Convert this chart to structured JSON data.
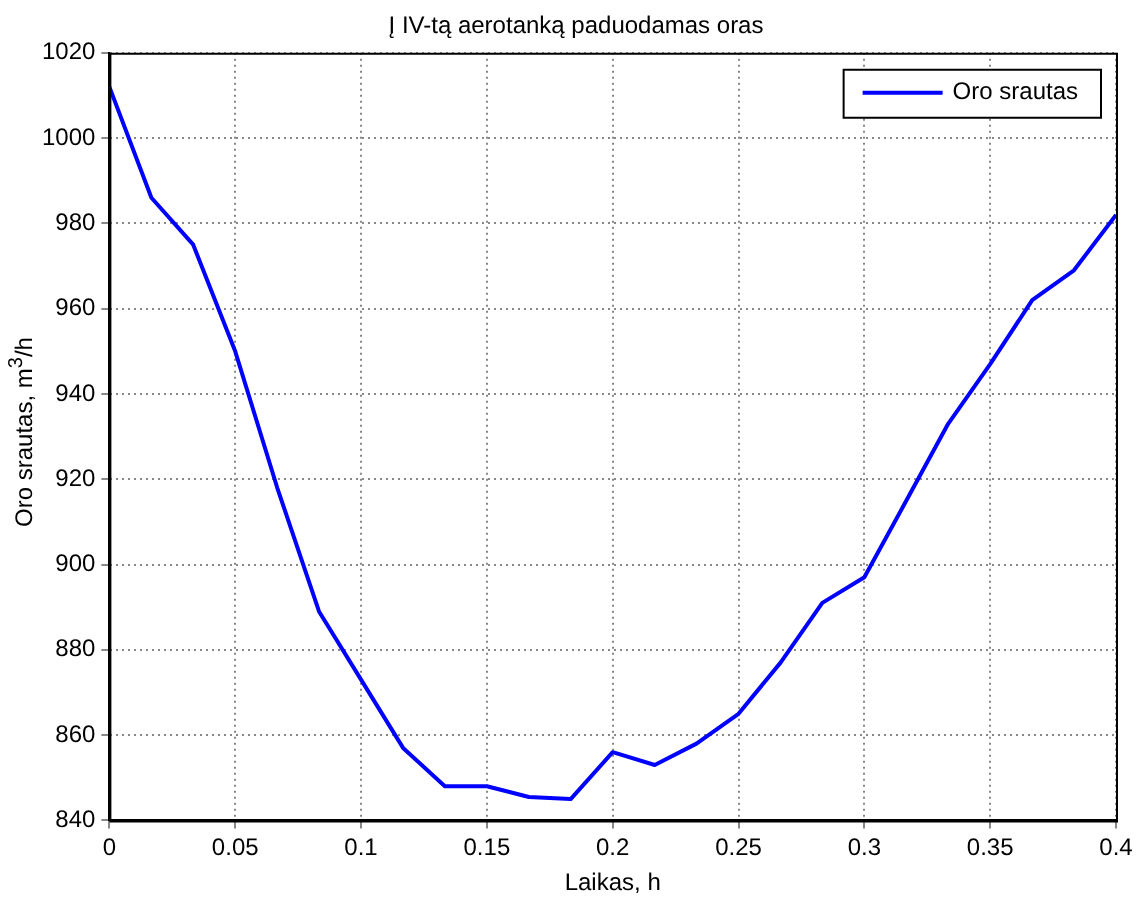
{
  "chart_data": {
    "type": "line",
    "title": "Į IV-tą aerotanką paduodamas oras",
    "xlabel": "Laikas, h",
    "ylabel": "Oro srautas, m$^{3}$/h",
    "x": [
      0,
      0.0167,
      0.0333,
      0.05,
      0.0667,
      0.0833,
      0.1,
      0.1167,
      0.1333,
      0.15,
      0.1667,
      0.1833,
      0.2,
      0.2167,
      0.2333,
      0.25,
      0.2667,
      0.2833,
      0.3,
      0.3167,
      0.3333,
      0.35,
      0.3667,
      0.3833,
      0.4
    ],
    "series": [
      {
        "name": "Oro srautas",
        "color": "#0000ff",
        "values": [
          1012,
          986,
          975,
          950,
          918,
          889,
          873,
          857,
          848,
          848,
          845.5,
          845,
          856,
          853,
          858,
          865,
          877,
          891,
          897,
          915,
          933,
          947,
          962,
          969,
          982
        ]
      }
    ],
    "xlim": [
      0,
      0.4
    ],
    "xticks": [
      0,
      0.05,
      0.1,
      0.15,
      0.2,
      0.25,
      0.3,
      0.35,
      0.4
    ],
    "ylim": [
      840,
      1020
    ],
    "yticks": [
      840,
      860,
      880,
      900,
      920,
      940,
      960,
      980,
      1000,
      1020
    ],
    "grid": true,
    "legend": "top right",
    "marker": "none",
    "line_style": "solid"
  }
}
